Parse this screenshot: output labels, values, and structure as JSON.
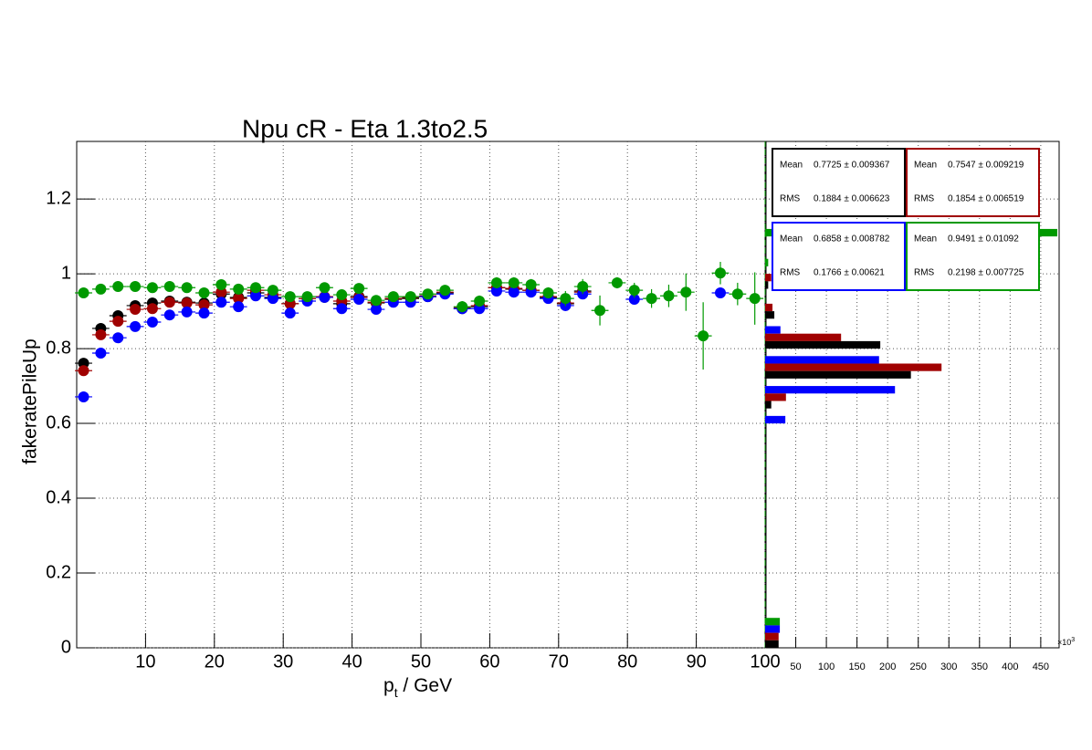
{
  "chart_data": [
    {
      "type": "scatter",
      "title": "Npu cR - Eta 1.3to2.5",
      "y_label": "fakeratePileUp",
      "x_label": "p",
      "x_label_sub": "t",
      "x_label_rest": " / GeV",
      "xlim": [
        0,
        100
      ],
      "xticks": [
        10,
        20,
        30,
        40,
        50,
        60,
        70,
        80,
        90,
        100
      ],
      "ylim": [
        0,
        1.354
      ],
      "yticks": [
        0,
        0.2,
        0.4,
        0.6,
        0.8,
        1,
        1.2
      ],
      "grid": true,
      "x": [
        1,
        3.5,
        6,
        8.5,
        11,
        13.5,
        16,
        18.5,
        21,
        23.5,
        26,
        28.5,
        31,
        33.5,
        36,
        38.5,
        41,
        43.5,
        46,
        48.5,
        51,
        53.5,
        56,
        58.5,
        61,
        63.5,
        66,
        68.5,
        71,
        73.5,
        76,
        78.5,
        81,
        83.5,
        86,
        88.5,
        91,
        93.5,
        96,
        98.5
      ],
      "xerr": 1.25,
      "series": [
        {
          "color": "#000000",
          "values": [
            0.761,
            0.854,
            0.888,
            0.915,
            0.922,
            0.927,
            0.924,
            0.922,
            0.946,
            0.937,
            0.949,
            0.937,
            0.92,
            0.934,
            0.937,
            0.92,
            0.939,
            0.922,
            0.932,
            0.934,
            0.939,
            0.949,
            0.907,
            0.912,
            0.963,
            0.959,
            0.956,
            0.937,
            0.92,
            0.954,
            null,
            null,
            null,
            null,
            null,
            null,
            null,
            null,
            null,
            null
          ]
        },
        {
          "color": "#a00000",
          "values": [
            0.741,
            0.837,
            0.873,
            0.905,
            0.907,
            0.924,
            0.922,
            0.917,
            0.951,
            0.934,
            0.956,
            0.944,
            0.92,
            0.934,
            0.939,
            0.927,
            0.937,
            0.924,
            0.934,
            0.937,
            0.941,
            0.951,
            0.91,
            0.915,
            0.963,
            0.961,
            0.956,
            0.939,
            0.922,
            0.951,
            null,
            null,
            null,
            null,
            null,
            null,
            null,
            null,
            null,
            null
          ]
        },
        {
          "color": "#0000ff",
          "values": [
            0.671,
            0.788,
            0.829,
            0.859,
            0.871,
            0.89,
            0.898,
            0.895,
            0.924,
            0.912,
            0.941,
            0.934,
            0.895,
            0.927,
            0.937,
            0.907,
            0.932,
            0.905,
            0.924,
            0.924,
            0.939,
            0.946,
            0.907,
            0.907,
            0.954,
            0.951,
            0.951,
            0.934,
            0.915,
            0.946,
            null,
            null,
            0.932,
            null,
            null,
            null,
            null,
            0.949,
            null,
            null
          ]
        },
        {
          "color": "#009900",
          "values": [
            0.949,
            0.959,
            0.966,
            0.966,
            0.963,
            0.966,
            0.963,
            0.949,
            0.971,
            0.959,
            0.963,
            0.956,
            0.939,
            0.939,
            0.963,
            0.944,
            0.961,
            0.929,
            0.939,
            0.939,
            0.946,
            0.956,
            0.912,
            0.927,
            0.976,
            0.976,
            0.971,
            0.949,
            0.934,
            0.966,
            0.902,
            0.976,
            0.956,
            0.934,
            0.941,
            0.951,
            0.834,
            1.002,
            0.946,
            0.934
          ],
          "yerr": [
            0.01,
            0.01,
            0.01,
            0.01,
            0.01,
            0.01,
            0.01,
            0.01,
            0.01,
            0.01,
            0.01,
            0.01,
            0.01,
            0.01,
            0.01,
            0.01,
            0.01,
            0.01,
            0.01,
            0.01,
            0.01,
            0.01,
            0.015,
            0.015,
            0.015,
            0.015,
            0.015,
            0.015,
            0.02,
            0.02,
            0.04,
            0.015,
            0.02,
            0.025,
            0.03,
            0.05,
            0.09,
            0.03,
            0.03,
            0.07
          ]
        }
      ]
    },
    {
      "type": "histogram",
      "orientation": "horizontal",
      "bins": [
        0,
        0.08,
        0.16,
        0.24,
        0.32,
        0.4,
        0.48,
        0.56,
        0.64,
        0.72,
        0.8,
        0.88,
        0.96,
        1.04,
        1.12
      ],
      "xlim": [
        0,
        480
      ],
      "xticks": [
        50,
        100,
        150,
        200,
        250,
        300,
        350,
        400,
        450
      ],
      "x_scale_label": "×10",
      "x_scale_exp": "3",
      "grid": true,
      "series": [
        {
          "color": "#009900",
          "values": [
            24,
            0,
            0,
            0,
            0,
            0,
            0,
            0,
            0,
            0,
            0,
            0,
            5,
            477
          ]
        },
        {
          "color": "#0000ff",
          "values": [
            24,
            0,
            0,
            0,
            0,
            0,
            0,
            33,
            212,
            186,
            25,
            0,
            0,
            0
          ]
        },
        {
          "color": "#a00000",
          "values": [
            22,
            0,
            0,
            0,
            0,
            0,
            0,
            0,
            34,
            288,
            124,
            12,
            10,
            0
          ]
        },
        {
          "color": "#000000",
          "values": [
            22,
            0,
            0,
            0,
            0,
            0,
            0,
            0,
            10,
            238,
            188,
            15,
            5,
            0
          ]
        }
      ],
      "stat_boxes": [
        {
          "color": "#000000",
          "mean_label": "Mean",
          "mean": "0.7725 ± 0.009367",
          "rms_label": "RMS",
          "rms": "0.1884 ± 0.006623"
        },
        {
          "color": "#a00000",
          "mean_label": "Mean",
          "mean": "0.7547 ± 0.009219",
          "rms_label": "RMS",
          "rms": "0.1854 ± 0.006519"
        },
        {
          "color": "#0000ff",
          "mean_label": "Mean",
          "mean": "0.6858 ± 0.008782",
          "rms_label": "RMS",
          "rms": "0.1766 ± 0.00621"
        },
        {
          "color": "#009900",
          "mean_label": "Mean",
          "mean": "0.9491 ± 0.01092",
          "rms_label": "RMS",
          "rms": "0.2198 ± 0.007725"
        }
      ]
    }
  ]
}
